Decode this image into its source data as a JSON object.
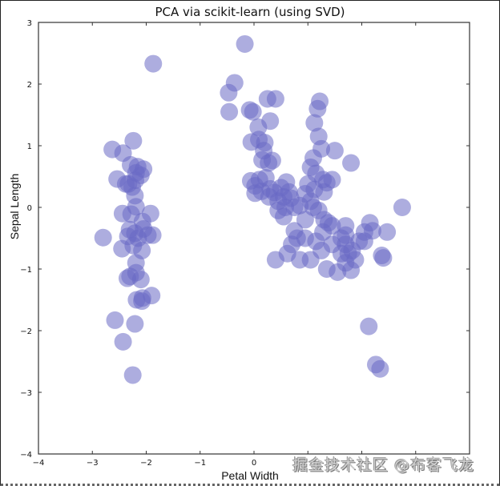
{
  "chart_data": {
    "type": "scatter",
    "title": "PCA via scikit-learn (using SVD)",
    "xlabel": "Petal Width",
    "ylabel": "Sepal Length",
    "xlim": [
      -4,
      4
    ],
    "ylim": [
      -4,
      3
    ],
    "xticks": [
      "−4",
      "−3",
      "−2",
      "−1",
      "0",
      "1",
      "2",
      "3",
      "4"
    ],
    "yticks": [
      "3",
      "2",
      "1",
      "0",
      "−1",
      "−2",
      "−3",
      "−4"
    ],
    "grid": false,
    "legend": null,
    "marker_color": "#6a6ac4",
    "marker_alpha": 0.55,
    "marker_radius_px": 11,
    "points": [
      [
        -1.87,
        2.33
      ],
      [
        -2.24,
        1.08
      ],
      [
        -2.43,
        0.88
      ],
      [
        -2.63,
        0.94
      ],
      [
        -2.54,
        0.46
      ],
      [
        -2.29,
        0.69
      ],
      [
        -2.05,
        0.62
      ],
      [
        -2.16,
        0.66
      ],
      [
        -2.2,
        0.44
      ],
      [
        -2.33,
        0.38
      ],
      [
        -2.26,
        0.33
      ],
      [
        -2.21,
        0.19
      ],
      [
        -2.38,
        0.38
      ],
      [
        -2.1,
        0.52
      ],
      [
        -2.19,
        0.56
      ],
      [
        -2.44,
        -0.1
      ],
      [
        -2.19,
        0.01
      ],
      [
        -1.92,
        -0.1
      ],
      [
        -2.28,
        -0.11
      ],
      [
        -2.07,
        -0.23
      ],
      [
        -2.31,
        -0.36
      ],
      [
        -2.21,
        -0.42
      ],
      [
        -2.15,
        -0.5
      ],
      [
        -1.97,
        -0.45
      ],
      [
        -2.34,
        -0.47
      ],
      [
        -2.05,
        -0.35
      ],
      [
        -1.88,
        -0.45
      ],
      [
        -2.8,
        -0.49
      ],
      [
        -2.45,
        -0.67
      ],
      [
        -2.08,
        -0.7
      ],
      [
        -2.24,
        -0.62
      ],
      [
        -2.19,
        -0.9
      ],
      [
        -2.19,
        -1.06
      ],
      [
        -2.35,
        -1.15
      ],
      [
        -2.3,
        -1.12
      ],
      [
        -2.1,
        -1.17
      ],
      [
        -1.9,
        -1.43
      ],
      [
        -2.18,
        -1.5
      ],
      [
        -2.08,
        -1.52
      ],
      [
        -2.58,
        -1.83
      ],
      [
        -2.21,
        -1.89
      ],
      [
        -2.43,
        -2.18
      ],
      [
        -2.25,
        -2.72
      ],
      [
        -2.07,
        -1.47
      ],
      [
        -0.17,
        2.65
      ],
      [
        0.34,
        0.76
      ],
      [
        -0.36,
        2.02
      ],
      [
        -0.47,
        1.86
      ],
      [
        -0.46,
        1.55
      ],
      [
        -0.08,
        1.58
      ],
      [
        -0.02,
        1.55
      ],
      [
        0.25,
        1.76
      ],
      [
        0.4,
        1.76
      ],
      [
        0.08,
        1.3
      ],
      [
        0.09,
        1.1
      ],
      [
        0.3,
        1.4
      ],
      [
        0.2,
        1.05
      ],
      [
        -0.05,
        1.06
      ],
      [
        0.18,
        0.92
      ],
      [
        0.15,
        0.77
      ],
      [
        0.27,
        0.72
      ],
      [
        0.1,
        0.45
      ],
      [
        -0.06,
        0.43
      ],
      [
        0.22,
        0.48
      ],
      [
        0.14,
        0.26
      ],
      [
        0.02,
        0.23
      ],
      [
        0.28,
        0.17
      ],
      [
        0.38,
        0.24
      ],
      [
        0.45,
        0.1
      ],
      [
        0.6,
        0.41
      ],
      [
        0.55,
        0.17
      ],
      [
        0.68,
        0.15
      ],
      [
        0.75,
        0.0
      ],
      [
        0.85,
        0.03
      ],
      [
        0.58,
        0.0
      ],
      [
        0.95,
        0.22
      ],
      [
        1.0,
        0.38
      ],
      [
        1.12,
        0.29
      ],
      [
        1.28,
        0.45
      ],
      [
        1.35,
        0.4
      ],
      [
        1.1,
        0.0
      ],
      [
        1.2,
        -0.05
      ],
      [
        1.3,
        -0.2
      ],
      [
        1.38,
        -0.25
      ],
      [
        1.28,
        -0.4
      ],
      [
        1.45,
        -0.3
      ],
      [
        1.62,
        -0.5
      ],
      [
        1.7,
        -0.6
      ],
      [
        1.75,
        -0.75
      ],
      [
        1.62,
        -0.75
      ],
      [
        1.7,
        -0.9
      ],
      [
        1.88,
        -0.85
      ],
      [
        1.95,
        -0.55
      ],
      [
        2.05,
        -0.4
      ],
      [
        2.15,
        -0.25
      ],
      [
        2.37,
        -0.78
      ],
      [
        2.4,
        -0.82
      ],
      [
        2.47,
        -0.4
      ],
      [
        2.75,
        0.0
      ],
      [
        1.8,
        0.72
      ],
      [
        1.22,
        1.72
      ],
      [
        1.18,
        1.6
      ],
      [
        1.12,
        1.37
      ],
      [
        1.2,
        1.15
      ],
      [
        1.25,
        0.95
      ],
      [
        1.1,
        0.8
      ],
      [
        1.05,
        0.65
      ],
      [
        1.15,
        0.55
      ],
      [
        1.3,
        0.25
      ],
      [
        1.5,
        0.92
      ],
      [
        1.45,
        0.45
      ],
      [
        1.05,
        0.1
      ],
      [
        0.95,
        -0.2
      ],
      [
        0.8,
        -0.5
      ],
      [
        0.7,
        -0.6
      ],
      [
        0.75,
        -0.38
      ],
      [
        0.95,
        -0.5
      ],
      [
        1.15,
        -0.55
      ],
      [
        1.25,
        -0.7
      ],
      [
        1.05,
        -0.85
      ],
      [
        0.85,
        -0.85
      ],
      [
        0.62,
        -0.75
      ],
      [
        0.4,
        -0.85
      ],
      [
        1.35,
        -1.0
      ],
      [
        1.55,
        -1.05
      ],
      [
        1.8,
        -1.02
      ],
      [
        1.45,
        -0.6
      ],
      [
        1.82,
        -0.7
      ],
      [
        2.05,
        -0.55
      ],
      [
        1.7,
        -0.3
      ],
      [
        2.2,
        -0.38
      ],
      [
        1.7,
        -0.45
      ],
      [
        0.3,
        0.3
      ],
      [
        0.45,
        -0.05
      ],
      [
        0.65,
        0.25
      ],
      [
        0.02,
        0.35
      ],
      [
        0.5,
        0.32
      ],
      [
        0.55,
        -0.15
      ],
      [
        2.13,
        -1.93
      ],
      [
        2.26,
        -2.55
      ],
      [
        2.34,
        -2.62
      ]
    ]
  },
  "watermark": "掘金技术社区 @布客飞龙"
}
